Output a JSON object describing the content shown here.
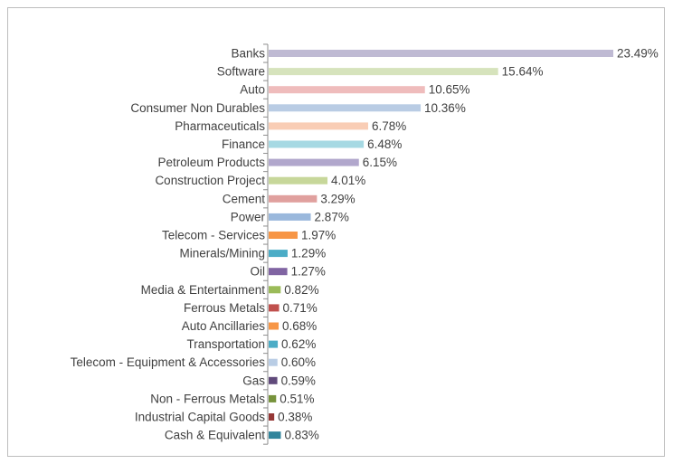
{
  "chart_data": {
    "type": "bar",
    "orientation": "horizontal",
    "title": "",
    "xlabel": "",
    "ylabel": "",
    "xlim": [
      0,
      23.49
    ],
    "grid": false,
    "legend": "none",
    "categories": [
      "Banks",
      "Software",
      "Auto",
      "Consumer Non Durables",
      "Pharmaceuticals",
      "Finance",
      "Petroleum Products",
      "Construction Project",
      "Cement",
      "Power",
      "Telecom - Services",
      "Minerals/Mining",
      "Oil",
      "Media & Entertainment",
      "Ferrous Metals",
      "Auto Ancillaries",
      "Transportation",
      "Telecom  - Equipment & Accessories",
      "Gas",
      "Non - Ferrous Metals",
      "Industrial Capital Goods",
      "Cash & Equivalent"
    ],
    "values": [
      23.49,
      15.64,
      10.65,
      10.36,
      6.78,
      6.48,
      6.15,
      4.01,
      3.29,
      2.87,
      1.97,
      1.29,
      1.27,
      0.82,
      0.71,
      0.68,
      0.62,
      0.6,
      0.59,
      0.51,
      0.38,
      0.83
    ],
    "value_labels": [
      "23.49%",
      "15.64%",
      "10.65%",
      "10.36%",
      "6.78%",
      "6.48%",
      "6.15%",
      "4.01%",
      "3.29%",
      "2.87%",
      "1.97%",
      "1.29%",
      "1.27%",
      "0.82%",
      "0.71%",
      "0.68%",
      "0.62%",
      "0.60%",
      "0.59%",
      "0.51%",
      "0.38%",
      "0.83%"
    ],
    "colors": [
      "#bfbad3",
      "#d6e3bc",
      "#efbcbc",
      "#b9cce4",
      "#f9cdb5",
      "#a6d9e3",
      "#b1a7cc",
      "#c7d79a",
      "#e0a09e",
      "#9ab8dc",
      "#f79646",
      "#4bacc6",
      "#8064a2",
      "#9bbb59",
      "#c0504d",
      "#f79646",
      "#4bacc6",
      "#b9cde5",
      "#604a7b",
      "#77933c",
      "#953735",
      "#31859c"
    ]
  }
}
